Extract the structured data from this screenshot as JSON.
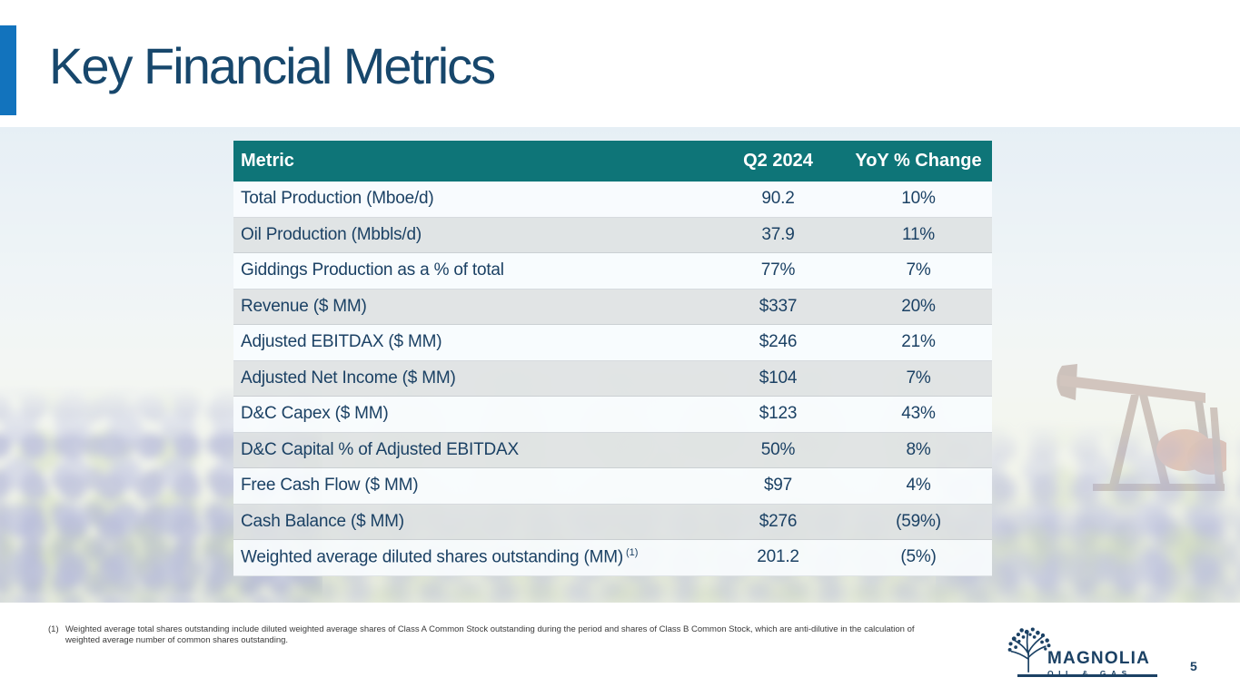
{
  "slide": {
    "title": "Key Financial Metrics",
    "page_number": "5"
  },
  "table": {
    "headers": [
      "Metric",
      "Q2 2024",
      "YoY % Change"
    ],
    "rows": [
      {
        "metric": "Total Production (Mboe/d)",
        "q2_2024": "90.2",
        "yoy_change": "10%"
      },
      {
        "metric": "Oil Production (Mbbls/d)",
        "q2_2024": "37.9",
        "yoy_change": "11%"
      },
      {
        "metric": "Giddings Production as a % of total",
        "q2_2024": "77%",
        "yoy_change": "7%"
      },
      {
        "metric": "Revenue ($ MM)",
        "q2_2024": "$337",
        "yoy_change": "20%"
      },
      {
        "metric": "Adjusted EBITDAX ($ MM)",
        "q2_2024": "$246",
        "yoy_change": "21%"
      },
      {
        "metric": "Adjusted Net Income ($ MM)",
        "q2_2024": "$104",
        "yoy_change": "7%"
      },
      {
        "metric": "D&C Capex ($ MM)",
        "q2_2024": "$123",
        "yoy_change": "43%"
      },
      {
        "metric": "D&C Capital % of Adjusted EBITDAX",
        "q2_2024": "50%",
        "yoy_change": "8%"
      },
      {
        "metric": "Free Cash Flow ($ MM)",
        "q2_2024": "$97",
        "yoy_change": "4%"
      },
      {
        "metric": "Cash Balance ($ MM)",
        "q2_2024": "$276",
        "yoy_change": "(59%)"
      },
      {
        "metric": "Weighted average diluted shares outstanding (MM)",
        "metric_superscript": "(1)",
        "q2_2024": "201.2",
        "yoy_change": "(5%)"
      }
    ]
  },
  "footnote": {
    "marker": "(1)",
    "text": "Weighted average total shares outstanding include diluted weighted average shares of Class A Common Stock outstanding during the period and shares of Class B Common Stock, which are anti-dilutive in the calculation of weighted average number of common shares outstanding."
  },
  "logo": {
    "name": "MAGNOLIA",
    "subtitle": "OIL & GAS"
  },
  "icons": {
    "logo_icon": "magnolia-tree-logo-icon",
    "background_right": "pumpjack-illustration",
    "background_field": "bluebonnet-field-illustration"
  },
  "colors": {
    "accent_bar": "#1273BD",
    "title_text": "#17476C",
    "table_header_bg": "#0E7578",
    "table_header_text": "#FFFFFF",
    "table_text": "#1B4164",
    "row_light_bg": "#F9FCFE",
    "row_gray_bg": "#DEE1E3",
    "logo_navy": "#1B4164",
    "pumpjack_rust": "#B0502F"
  }
}
